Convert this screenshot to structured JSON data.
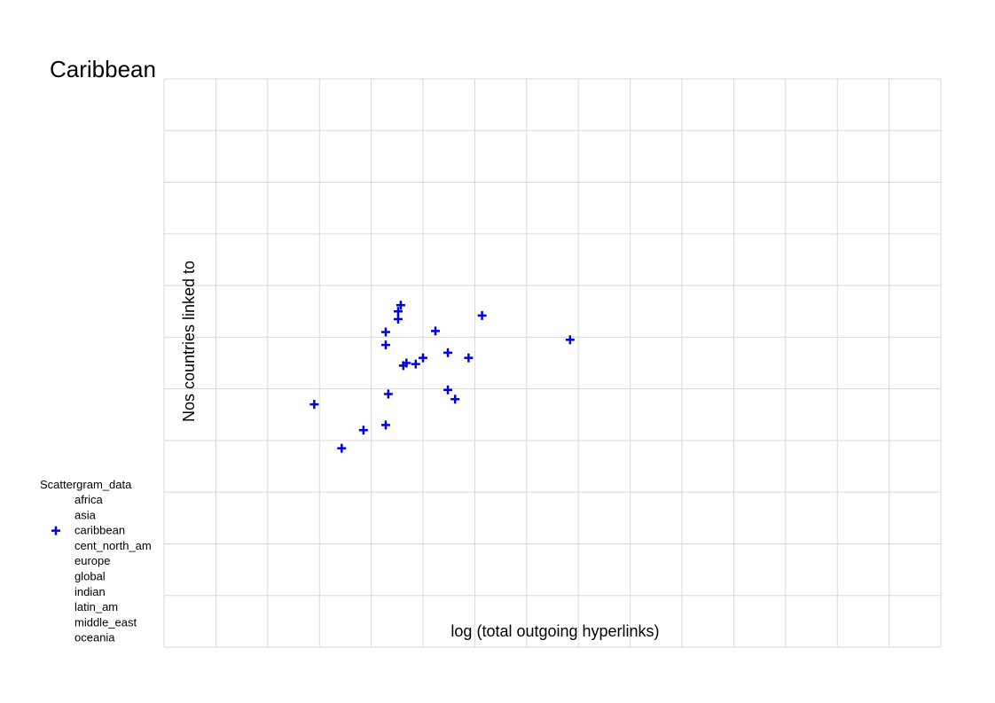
{
  "chart_data": {
    "type": "scatter",
    "title": "Caribbean",
    "xlabel": "log (total outgoing hyperlinks)",
    "ylabel": "Nos countries linked to",
    "xlim": [
      0,
      15
    ],
    "ylim": [
      0,
      11
    ],
    "grid": true,
    "legend_position": "bottom-left",
    "legend_title": "Scattergram_data",
    "legend_entries": [
      "africa",
      "asia",
      "caribbean",
      "cent_north_am",
      "europe",
      "global",
      "indian",
      "latin_am",
      "middle_east",
      "oceania"
    ],
    "series": [
      {
        "name": "caribbean",
        "color": "#0000e6",
        "marker": "plus",
        "x": [
          2.9,
          3.43,
          3.85,
          4.28,
          4.33,
          4.28,
          4.28,
          4.52,
          4.52,
          4.57,
          4.62,
          4.68,
          4.86,
          5.0,
          5.24,
          5.48,
          5.48,
          5.62,
          5.88,
          6.14,
          7.84
        ],
        "y": [
          4.7,
          3.85,
          4.2,
          4.3,
          4.9,
          5.85,
          6.1,
          6.35,
          6.5,
          6.62,
          5.45,
          5.5,
          5.48,
          5.6,
          6.12,
          4.98,
          5.7,
          4.8,
          5.6,
          6.42,
          5.95
        ]
      }
    ]
  }
}
